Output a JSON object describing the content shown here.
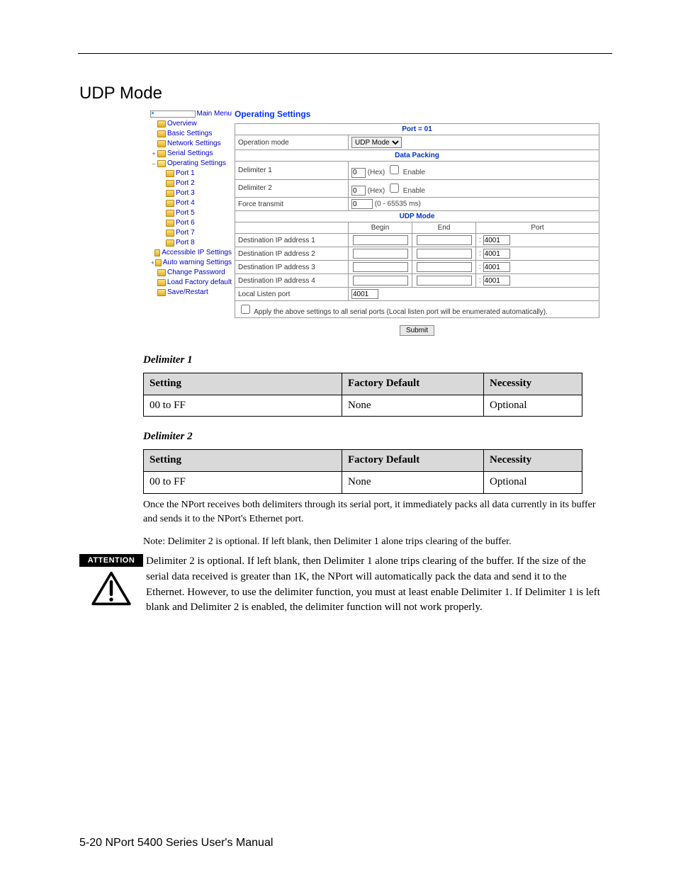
{
  "page": {
    "title": "UDP Mode",
    "footer": "5-20  NPort 5400 Series User's Manual"
  },
  "sidebar": {
    "main": "Main Menu",
    "items": [
      {
        "label": "Overview",
        "indent": 1,
        "icon": "folder",
        "twisty": ""
      },
      {
        "label": "Basic Settings",
        "indent": 1,
        "icon": "folder",
        "twisty": ""
      },
      {
        "label": "Network Settings",
        "indent": 1,
        "icon": "folder",
        "twisty": ""
      },
      {
        "label": "Serial Settings",
        "indent": 1,
        "icon": "folder",
        "twisty": "+"
      },
      {
        "label": "Operating Settings",
        "indent": 1,
        "icon": "folder-open",
        "twisty": "–"
      },
      {
        "label": "Port 1",
        "indent": 2,
        "icon": "folder",
        "twisty": ""
      },
      {
        "label": "Port 2",
        "indent": 2,
        "icon": "folder",
        "twisty": ""
      },
      {
        "label": "Port 3",
        "indent": 2,
        "icon": "folder",
        "twisty": ""
      },
      {
        "label": "Port 4",
        "indent": 2,
        "icon": "folder",
        "twisty": ""
      },
      {
        "label": "Port 5",
        "indent": 2,
        "icon": "folder",
        "twisty": ""
      },
      {
        "label": "Port 6",
        "indent": 2,
        "icon": "folder",
        "twisty": ""
      },
      {
        "label": "Port 7",
        "indent": 2,
        "icon": "folder",
        "twisty": ""
      },
      {
        "label": "Port 8",
        "indent": 2,
        "icon": "folder",
        "twisty": ""
      },
      {
        "label": "Accessible IP Settings",
        "indent": 1,
        "icon": "folder",
        "twisty": ""
      },
      {
        "label": "Auto warning Settings",
        "indent": 1,
        "icon": "folder",
        "twisty": "+"
      },
      {
        "label": "Change Password",
        "indent": 1,
        "icon": "folder",
        "twisty": ""
      },
      {
        "label": "Load Factory default",
        "indent": 1,
        "icon": "folder",
        "twisty": ""
      },
      {
        "label": "Save/Restart",
        "indent": 1,
        "icon": "folder",
        "twisty": ""
      }
    ]
  },
  "settings": {
    "heading": "Operating Settings",
    "section_port": "Port = 01",
    "op_mode_label": "Operation mode",
    "op_mode_value": "UDP Mode",
    "section_data_packing": "Data Packing",
    "delim1_label": "Delimiter 1",
    "delim1_value": "0",
    "delim2_label": "Delimiter 2",
    "delim2_value": "0",
    "delim_suffix": "(Hex)",
    "enable_label": "Enable",
    "force_transmit_label": "Force transmit",
    "force_transmit_value": "0",
    "force_transmit_suffix": "(0 - 65535 ms)",
    "section_udp": "UDP Mode",
    "col_begin": "Begin",
    "col_end": "End",
    "col_port": "Port",
    "dest_rows": [
      {
        "label": "Destination IP address 1",
        "port": "4001"
      },
      {
        "label": "Destination IP address 2",
        "port": "4001"
      },
      {
        "label": "Destination IP address 3",
        "port": "4001"
      },
      {
        "label": "Destination IP address 4",
        "port": "4001"
      }
    ],
    "local_listen_label": "Local Listen port",
    "local_listen_value": "4001",
    "apply_all_label": "Apply the above settings to all serial ports (Local listen port will be enumerated automatically).",
    "submit_label": "Submit"
  },
  "doc": {
    "delim1_title": "Delimiter 1",
    "delim2_title": "Delimiter 2",
    "spec1": {
      "h_setting": "Setting",
      "h_default": "Factory Default",
      "h_necessity": "Necessity",
      "setting": "00 to FF",
      "default": "None",
      "necessity": "Optional"
    },
    "spec2": {
      "h_setting": "Setting",
      "h_default": "Factory Default",
      "h_necessity": "Necessity",
      "setting": "00 to FF",
      "default": "None",
      "necessity": "Optional"
    },
    "para1": "Once the NPort receives both delimiters through its serial port, it immediately packs all data currently in its buffer and sends it to the NPort's Ethernet port.",
    "para2": "Note: Delimiter 2 is optional. If left blank, then Delimiter 1 alone trips clearing of the buffer.",
    "attention_badge": "ATTENTION",
    "attention_body": "Delimiter 2 is optional. If left blank, then Delimiter 1 alone trips clearing of the buffer. If the size of the serial data received is greater than 1K, the NPort will automatically pack the data and send it to the Ethernet. However, to use the delimiter function, you must at least enable Delimiter 1. If Delimiter 1 is left blank and Delimiter 2 is enabled, the delimiter function will not work properly."
  }
}
